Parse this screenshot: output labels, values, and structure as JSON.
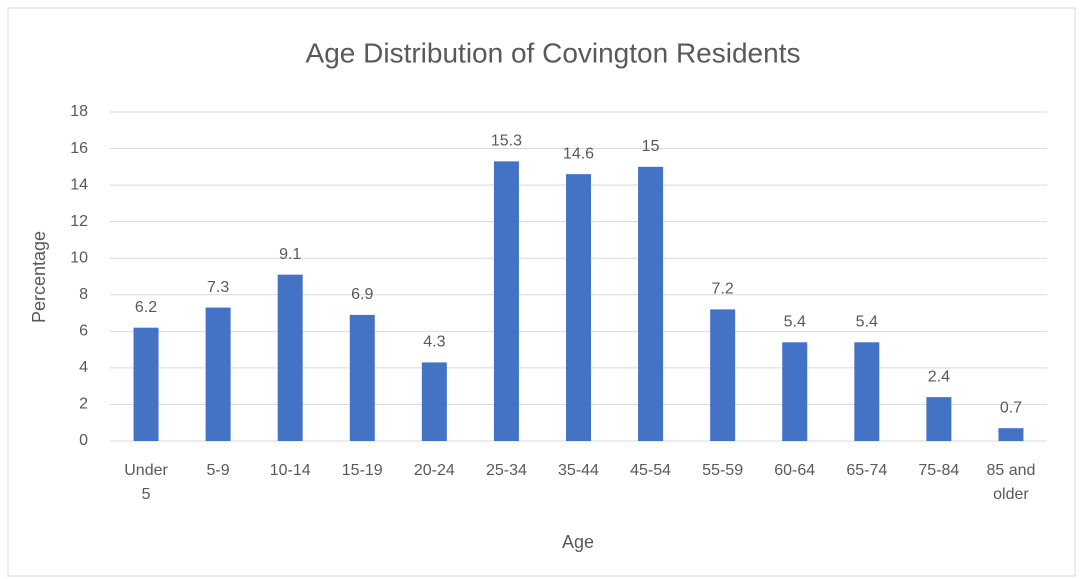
{
  "chart_data": {
    "type": "bar",
    "title": "Age Distribution of Covington Residents",
    "x_label": "Age",
    "y_label": "Percentage",
    "categories": [
      "Under 5",
      "5-9",
      "10-14",
      "15-19",
      "20-24",
      "25-34",
      "35-44",
      "45-54",
      "55-59",
      "60-64",
      "65-74",
      "75-84",
      "85 and older"
    ],
    "values": [
      6.2,
      7.3,
      9.1,
      6.9,
      4.3,
      15.3,
      14.6,
      15,
      7.2,
      5.4,
      5.4,
      2.4,
      0.7
    ],
    "color": "#4472c4",
    "ylim": [
      0,
      18
    ],
    "yticks": [
      0,
      2,
      4,
      6,
      8,
      10,
      12,
      14,
      16,
      18
    ],
    "grid": true
  }
}
